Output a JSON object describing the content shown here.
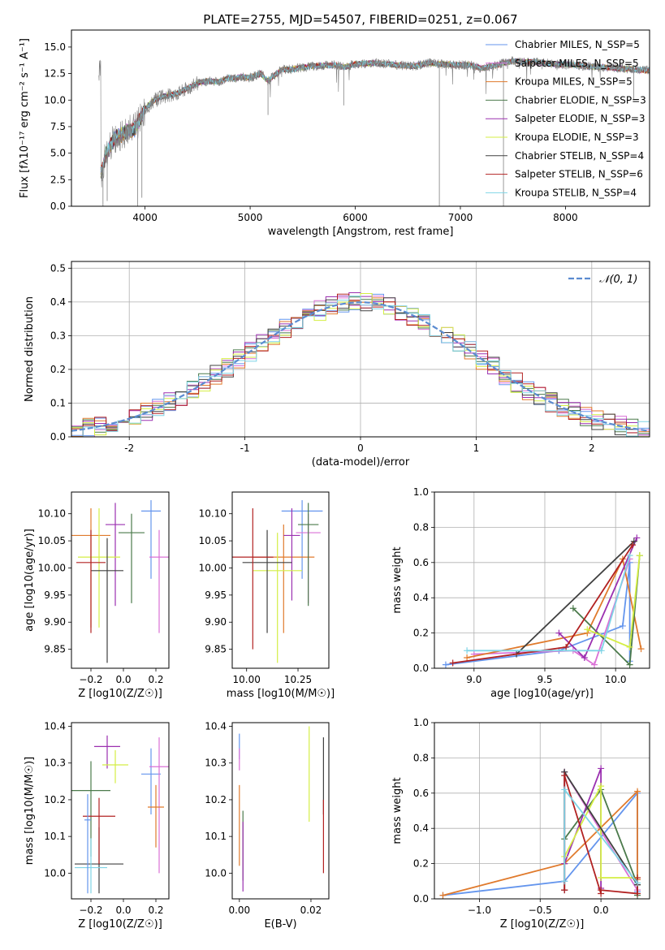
{
  "chart_data": [
    {
      "type": "line",
      "title": "PLATE=2755, MJD=54507, FIBERID=0251, z=0.067",
      "xlabel": "wavelength [Angstrom, rest frame]",
      "ylabel": "Flux [fλ10⁻¹⁷ erg cm⁻² s⁻¹ A⁻¹]",
      "xlim": [
        3300,
        8800
      ],
      "ylim": [
        0,
        16.6
      ],
      "xticks": [
        4000,
        5000,
        6000,
        7000,
        8000
      ],
      "yticks": [
        0.0,
        2.5,
        5.0,
        7.5,
        10.0,
        12.5,
        15.0
      ],
      "ytick_labels": [
        "0.0",
        "2.5",
        "5.0",
        "7.5",
        "10.0",
        "12.5",
        "15.0"
      ],
      "legend_position": "right",
      "data_series": {
        "name": "data",
        "color": "#808080"
      },
      "continuum_points": [
        [
          3580,
          3.0
        ],
        [
          3620,
          4.6
        ],
        [
          3700,
          6.3
        ],
        [
          3800,
          6.9
        ],
        [
          3900,
          7.3
        ],
        [
          3960,
          8.3
        ],
        [
          4000,
          9.2
        ],
        [
          4100,
          10.1
        ],
        [
          4200,
          10.4
        ],
        [
          4300,
          10.6
        ],
        [
          4400,
          11.1
        ],
        [
          4500,
          11.6
        ],
        [
          4600,
          11.8
        ],
        [
          4700,
          11.7
        ],
        [
          4800,
          12.1
        ],
        [
          4860,
          12.0
        ],
        [
          4900,
          12.2
        ],
        [
          5000,
          12.1
        ],
        [
          5100,
          12.5
        ],
        [
          5170,
          11.8
        ],
        [
          5300,
          12.9
        ],
        [
          5400,
          12.9
        ],
        [
          5500,
          13.1
        ],
        [
          5600,
          13.2
        ],
        [
          5800,
          13.3
        ],
        [
          5900,
          13.1
        ],
        [
          6000,
          13.4
        ],
        [
          6200,
          13.5
        ],
        [
          6400,
          13.3
        ],
        [
          6560,
          13.2
        ],
        [
          6700,
          13.5
        ],
        [
          6800,
          13.4
        ],
        [
          7000,
          13.3
        ],
        [
          7100,
          13.3
        ],
        [
          7200,
          13.0
        ],
        [
          7300,
          13.2
        ],
        [
          7500,
          13.7
        ],
        [
          7600,
          13.6
        ],
        [
          7700,
          13.6
        ],
        [
          7900,
          13.4
        ],
        [
          8100,
          13.3
        ],
        [
          8300,
          13.1
        ],
        [
          8500,
          13.0
        ],
        [
          8600,
          12.9
        ],
        [
          8800,
          12.8
        ]
      ],
      "series": [
        {
          "name": "Chabrier MILES, N_SSP=5",
          "color": "#6495ed"
        },
        {
          "name": "Salpeter MILES, N_SSP=5",
          "color": "#da70d6"
        },
        {
          "name": "Kroupa MILES, N_SSP=5",
          "color": "#e07a2c"
        },
        {
          "name": "Chabrier ELODIE, N_SSP=3",
          "color": "#4b7a4b"
        },
        {
          "name": "Salpeter ELODIE, N_SSP=3",
          "color": "#9b30b0"
        },
        {
          "name": "Kroupa ELODIE, N_SSP=3",
          "color": "#d4ee44"
        },
        {
          "name": "Chabrier STELIB, N_SSP=4",
          "color": "#404040"
        },
        {
          "name": "Salpeter STELIB, N_SSP=6",
          "color": "#b22222"
        },
        {
          "name": "Kroupa STELIB, N_SSP=4",
          "color": "#7fd4e6"
        }
      ]
    },
    {
      "type": "area",
      "xlabel": "(data-model)/error",
      "ylabel": "Normed distribution",
      "xlim": [
        -2.5,
        2.5
      ],
      "ylim": [
        0,
        0.52
      ],
      "xticks": [
        -2,
        -1,
        0,
        1,
        2
      ],
      "yticks": [
        0.0,
        0.1,
        0.2,
        0.3,
        0.4,
        0.5
      ],
      "ytick_labels": [
        "0.0",
        "0.1",
        "0.2",
        "0.3",
        "0.4",
        "0.5"
      ],
      "grid": true,
      "legend_position": "top-right",
      "legend": "𝒩(0, 1)",
      "gaussian": {
        "mean": 0,
        "sigma": 1,
        "color": "#5b8bd0"
      },
      "bin_width": 0.1,
      "bin_start": -2.5
    },
    {
      "type": "scatter",
      "xlabel": "Z [log10(Z/Z☉)]",
      "ylabel": "age  [log10(age/yr)]",
      "xlim": [
        -0.32,
        0.28
      ],
      "ylim": [
        9.815,
        10.14
      ],
      "xticks": [
        -0.2,
        0.0,
        0.2
      ],
      "xtick_labels": [
        "−0.2",
        "0.0",
        "0.2"
      ],
      "yticks": [
        9.85,
        9.9,
        9.95,
        10.0,
        10.05,
        10.1
      ],
      "ytick_labels": [
        "9.85",
        "9.90",
        "9.95",
        "10.00",
        "10.05",
        "10.10"
      ],
      "points": [
        {
          "x": 0.17,
          "y": 10.105,
          "xerr": 0.06,
          "yerr_lo": 0.125,
          "yerr_hi": 0.02
        },
        {
          "x": 0.22,
          "y": 10.02,
          "xerr": 0.06,
          "yerr_lo": 0.14,
          "yerr_hi": 0.05
        },
        {
          "x": -0.2,
          "y": 10.06,
          "xerr": 0.12,
          "yerr_lo": 0.17,
          "yerr_hi": 0.05
        },
        {
          "x": 0.05,
          "y": 10.065,
          "xerr": 0.08,
          "yerr_lo": 0.13,
          "yerr_hi": 0.035
        },
        {
          "x": -0.05,
          "y": 10.08,
          "xerr": 0.06,
          "yerr_lo": 0.15,
          "yerr_hi": 0.04
        },
        {
          "x": -0.15,
          "y": 10.02,
          "xerr": 0.13,
          "yerr_lo": 0.13,
          "yerr_hi": 0.09
        },
        {
          "x": -0.1,
          "y": 9.995,
          "xerr": 0.1,
          "yerr_lo": 0.17,
          "yerr_hi": 0.06
        },
        {
          "x": -0.2,
          "y": 10.01,
          "xerr": 0.09,
          "yerr_lo": 0.13,
          "yerr_hi": 0.06
        }
      ]
    },
    {
      "type": "scatter",
      "xlabel": "mass [log10(M/M☉)]",
      "ylabel": "",
      "xlim": [
        9.93,
        10.4
      ],
      "ylim": [
        9.815,
        10.14
      ],
      "xticks": [
        10.0,
        10.25
      ],
      "xtick_labels": [
        "10.00",
        "10.25"
      ],
      "yticks": [
        9.85,
        9.9,
        9.95,
        10.0,
        10.05,
        10.1
      ],
      "ytick_labels": [
        "9.85",
        "9.90",
        "9.95",
        "10.00",
        "10.05",
        "10.10"
      ],
      "points": [
        {
          "x": 10.27,
          "y": 10.105,
          "xerr": 0.1,
          "yerr_lo": 0.125,
          "yerr_hi": 0.02
        },
        {
          "x": 10.3,
          "y": 10.065,
          "xerr": 0.06,
          "yerr_lo": 0.13,
          "yerr_hi": 0.035
        },
        {
          "x": 10.18,
          "y": 10.02,
          "xerr": 0.15,
          "yerr_lo": 0.14,
          "yerr_hi": 0.06
        },
        {
          "x": 10.3,
          "y": 10.08,
          "xerr": 0.05,
          "yerr_lo": 0.15,
          "yerr_hi": 0.04
        },
        {
          "x": 10.22,
          "y": 10.06,
          "xerr": 0.04,
          "yerr_lo": 0.12,
          "yerr_hi": 0.05
        },
        {
          "x": 10.15,
          "y": 9.995,
          "xerr": 0.12,
          "yerr_lo": 0.17,
          "yerr_hi": 0.07
        },
        {
          "x": 10.1,
          "y": 10.01,
          "xerr": 0.12,
          "yerr_lo": 0.13,
          "yerr_hi": 0.06
        },
        {
          "x": 10.03,
          "y": 10.02,
          "xerr": 0.1,
          "yerr_lo": 0.17,
          "yerr_hi": 0.09
        }
      ]
    },
    {
      "type": "line",
      "xlabel": "age  [log10(age/yr)]",
      "ylabel": "mass weight",
      "xlim": [
        8.72,
        10.24
      ],
      "ylim": [
        0,
        1.0
      ],
      "xticks": [
        9.0,
        9.5,
        10.0
      ],
      "xtick_labels": [
        "9.0",
        "9.5",
        "10.0"
      ],
      "yticks": [
        0.0,
        0.2,
        0.4,
        0.6,
        0.8,
        1.0
      ],
      "ytick_labels": [
        "0.0",
        "0.2",
        "0.4",
        "0.6",
        "0.8",
        "1.0"
      ],
      "grid": true,
      "series": [
        {
          "color": "#6495ed",
          "x": [
            8.8,
            9.6,
            10.05,
            10.1,
            10.1
          ],
          "y": [
            0.02,
            0.1,
            0.24,
            0.6,
            0.04
          ]
        },
        {
          "color": "#da70d6",
          "x": [
            9.0,
            9.7,
            9.85,
            10.1
          ],
          "y": [
            0.08,
            0.1,
            0.02,
            0.62
          ]
        },
        {
          "color": "#e07a2c",
          "x": [
            8.95,
            9.8,
            10.05,
            10.18
          ],
          "y": [
            0.06,
            0.2,
            0.62,
            0.11
          ]
        },
        {
          "color": "#4b7a4b",
          "x": [
            9.7,
            10.1,
            10.17
          ],
          "y": [
            0.34,
            0.02,
            0.64
          ]
        },
        {
          "color": "#9b30b0",
          "x": [
            9.6,
            9.78,
            10.15
          ],
          "y": [
            0.2,
            0.06,
            0.74
          ]
        },
        {
          "color": "#d4ee44",
          "x": [
            9.8,
            10.1,
            10.17
          ],
          "y": [
            0.22,
            0.12,
            0.64
          ]
        },
        {
          "color": "#404040",
          "x": [
            9.3,
            10.13
          ],
          "y": [
            0.08,
            0.72
          ]
        },
        {
          "color": "#b22222",
          "x": [
            8.85,
            9.65,
            10.12
          ],
          "y": [
            0.03,
            0.12,
            0.7
          ]
        },
        {
          "color": "#7fd4e6",
          "x": [
            8.95,
            9.9,
            10.1
          ],
          "y": [
            0.1,
            0.1,
            0.64
          ]
        }
      ]
    },
    {
      "type": "scatter",
      "xlabel": "Z [log10(Z/Z☉)]",
      "ylabel": "mass [log10(M/M☉)]",
      "xlim": [
        -0.32,
        0.28
      ],
      "ylim": [
        9.93,
        10.41
      ],
      "xticks": [
        -0.2,
        0.0,
        0.2
      ],
      "xtick_labels": [
        "−0.2",
        "0.0",
        "0.2"
      ],
      "yticks": [
        10.0,
        10.1,
        10.2,
        10.3,
        10.4
      ],
      "ytick_labels": [
        "10.0",
        "10.1",
        "10.2",
        "10.3",
        "10.4"
      ],
      "points": [
        {
          "x": 0.17,
          "y": 10.27,
          "xerr": 0.06,
          "yerr_lo": 0.11,
          "yerr_hi": 0.07
        },
        {
          "x": 0.22,
          "y": 10.29,
          "xerr": 0.06,
          "yerr_lo": 0.29,
          "yerr_hi": 0.08
        },
        {
          "x": 0.2,
          "y": 10.18,
          "xerr": 0.05,
          "yerr_lo": 0.11,
          "yerr_hi": 0.06
        },
        {
          "x": -0.2,
          "y": 10.225,
          "xerr": 0.12,
          "yerr_lo": 0.18,
          "yerr_hi": 0.08
        },
        {
          "x": -0.1,
          "y": 10.345,
          "xerr": 0.08,
          "yerr_lo": 0.06,
          "yerr_hi": 0.03
        },
        {
          "x": -0.05,
          "y": 10.295,
          "xerr": 0.08,
          "yerr_lo": 0.05,
          "yerr_hi": 0.04
        },
        {
          "x": -0.15,
          "y": 10.025,
          "xerr": 0.15,
          "yerr_lo": 0.08,
          "yerr_hi": 0.1
        },
        {
          "x": -0.15,
          "y": 10.155,
          "xerr": 0.1,
          "yerr_lo": 0.13,
          "yerr_hi": 0.05
        },
        {
          "x": -0.2,
          "y": 10.015,
          "xerr": 0.1,
          "yerr_lo": 0.07,
          "yerr_hi": 0.08
        },
        {
          "x": -0.22,
          "y": 10.145,
          "xerr": 0.02,
          "yerr_lo": 0.2,
          "yerr_hi": 0.07
        }
      ]
    },
    {
      "type": "scatter",
      "xlabel": "E(B-V)",
      "ylabel": "",
      "xlim": [
        -0.002,
        0.025
      ],
      "ylim": [
        9.93,
        10.41
      ],
      "xticks": [
        0.0,
        0.02
      ],
      "xtick_labels": [
        "0.00",
        "0.02"
      ],
      "yticks": [
        10.0,
        10.1,
        10.2,
        10.3,
        10.4
      ],
      "ytick_labels": [
        "10.0",
        "10.1",
        "10.2",
        "10.3",
        "10.4"
      ],
      "points": [
        {
          "x": 0.0,
          "y": 10.35,
          "yerr_lo": 0.04,
          "yerr_hi": 0.03
        },
        {
          "x": 0.0,
          "y": 10.32,
          "yerr_lo": 0.04,
          "yerr_hi": 0.02
        },
        {
          "x": 0.0,
          "y": 10.12,
          "yerr_lo": 0.1,
          "yerr_hi": 0.12
        },
        {
          "x": 0.001,
          "y": 10.06,
          "yerr_lo": 0.08,
          "yerr_hi": 0.11
        },
        {
          "x": 0.001,
          "y": 10.05,
          "yerr_lo": 0.1,
          "yerr_hi": 0.09
        },
        {
          "x": 0.0195,
          "y": 10.29,
          "yerr_lo": 0.15,
          "yerr_hi": 0.11
        },
        {
          "x": 0.0235,
          "y": 10.27,
          "yerr_lo": 0.11,
          "yerr_hi": 0.1
        },
        {
          "x": 0.0235,
          "y": 10.1,
          "yerr_lo": 0.1,
          "yerr_hi": 0.1
        }
      ]
    },
    {
      "type": "line",
      "xlabel": "Z [log10(Z/Z☉)]",
      "ylabel": "mass weight",
      "xlim": [
        -1.37,
        0.4
      ],
      "ylim": [
        0,
        1.0
      ],
      "xticks": [
        -1.0,
        -0.5,
        0.0
      ],
      "xtick_labels": [
        "−1.0",
        "−0.5",
        "0.0"
      ],
      "yticks": [
        0.0,
        0.2,
        0.4,
        0.6,
        0.8,
        1.0
      ],
      "ytick_labels": [
        "0.0",
        "0.2",
        "0.4",
        "0.6",
        "0.8",
        "1.0"
      ],
      "grid": true,
      "series": [
        {
          "color": "#6495ed",
          "x": [
            -1.3,
            -0.3,
            0.3,
            0.3
          ],
          "y": [
            0.02,
            0.1,
            0.6,
            0.04
          ]
        },
        {
          "color": "#da70d6",
          "x": [
            -0.3,
            -0.3,
            0.3
          ],
          "y": [
            0.05,
            0.72,
            0.05
          ]
        },
        {
          "color": "#e07a2c",
          "x": [
            -1.3,
            -0.3,
            0.3,
            0.3
          ],
          "y": [
            0.02,
            0.2,
            0.61,
            0.11
          ]
        },
        {
          "color": "#4b7a4b",
          "x": [
            -0.3,
            0.0,
            0.3,
            0.3
          ],
          "y": [
            0.34,
            0.62,
            0.08,
            0.02
          ]
        },
        {
          "color": "#9b30b0",
          "x": [
            -0.3,
            0.0,
            0.0
          ],
          "y": [
            0.2,
            0.74,
            0.06
          ]
        },
        {
          "color": "#d4ee44",
          "x": [
            -0.3,
            0.0,
            0.0,
            0.3
          ],
          "y": [
            0.24,
            0.64,
            0.12,
            0.12
          ]
        },
        {
          "color": "#404040",
          "x": [
            -0.3,
            -0.3,
            0.3
          ],
          "y": [
            0.05,
            0.72,
            0.08
          ]
        },
        {
          "color": "#b22222",
          "x": [
            -0.3,
            -0.3,
            0.0,
            0.0,
            0.3,
            0.3
          ],
          "y": [
            0.05,
            0.7,
            0.03,
            0.05,
            0.03,
            0.12
          ]
        },
        {
          "color": "#7fd4e6",
          "x": [
            -0.3,
            -0.3,
            0.3
          ],
          "y": [
            0.1,
            0.62,
            0.09
          ]
        }
      ]
    }
  ]
}
